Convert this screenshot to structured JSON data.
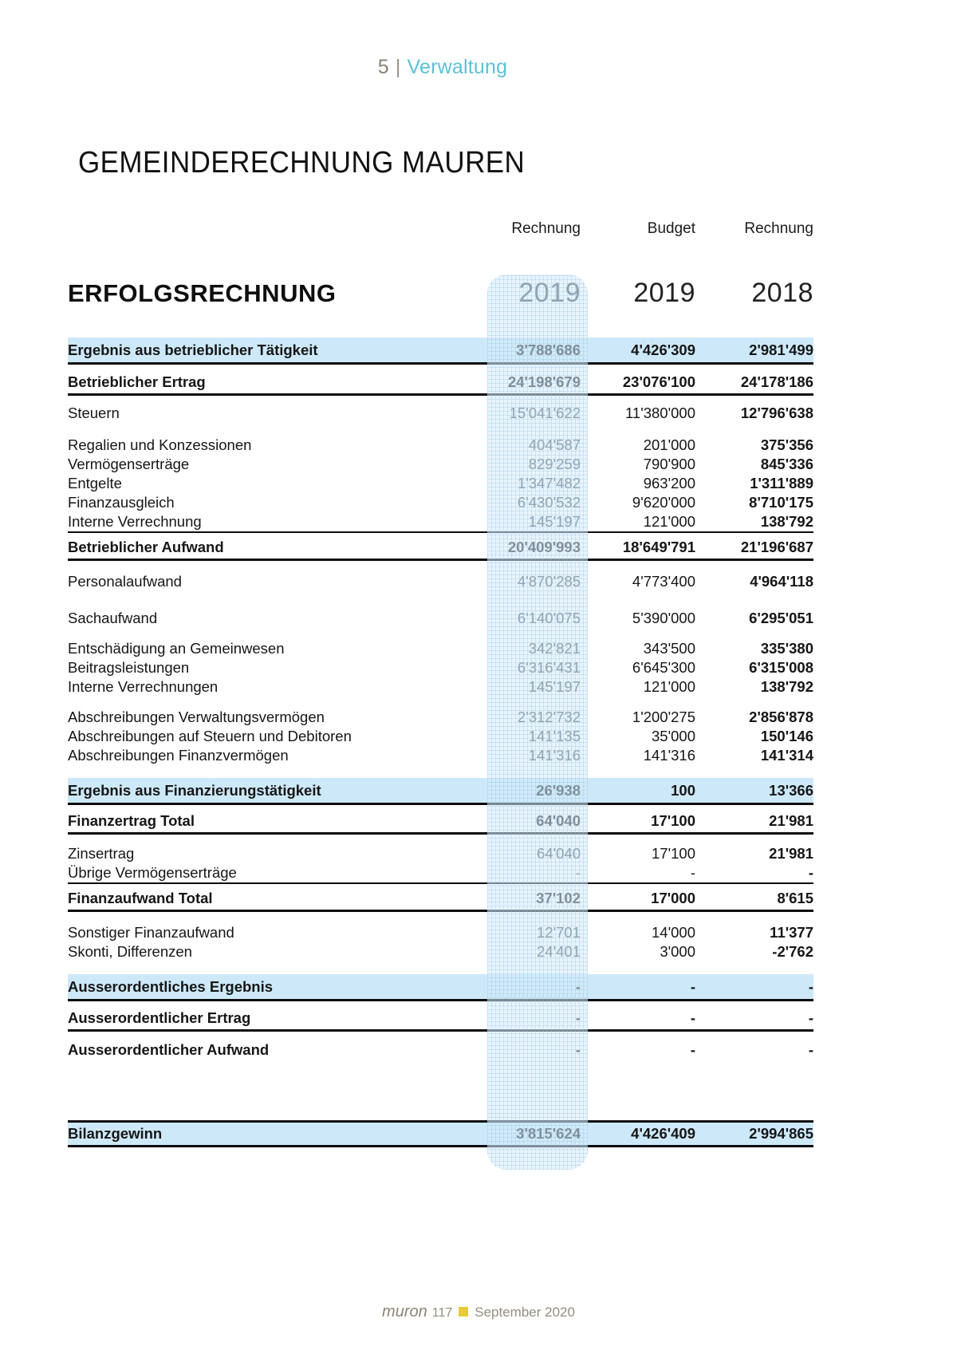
{
  "page_header": {
    "page_number": "5",
    "separator": "|",
    "section": "Verwaltung"
  },
  "title": "GEMEINDERECHNUNG MAUREN",
  "column_headers": [
    "Rechnung",
    "Budget",
    "Rechnung"
  ],
  "statement": {
    "heading": "ERFOLGSRECHNUNG",
    "years": [
      "2019",
      "2019",
      "2018"
    ]
  },
  "table": {
    "rows": [
      {
        "type": "result",
        "label": "Ergebnis aus betrieblicher Tätigkeit",
        "values": [
          "3'788'686",
          "4'426'309",
          "2'981'499"
        ]
      },
      {
        "type": "total",
        "label": "Betrieblicher Ertrag",
        "values": [
          "24'198'679",
          "23'076'100",
          "24'178'186"
        ]
      },
      {
        "type": "detail",
        "label": "Steuern",
        "values": [
          "15'041'622",
          "11'380'000",
          "12'796'638"
        ]
      },
      {
        "type": "detail",
        "label": "Regalien und Konzessionen",
        "values": [
          "404'587",
          "201'000",
          "375'356"
        ]
      },
      {
        "type": "detail",
        "label": "Vermögenserträge",
        "values": [
          "829'259",
          "790'900",
          "845'336"
        ]
      },
      {
        "type": "detail",
        "label": "Entgelte",
        "values": [
          "1'347'482",
          "963'200",
          "1'311'889"
        ]
      },
      {
        "type": "detail",
        "label": "Finanzausgleich",
        "values": [
          "6'430'532",
          "9'620'000",
          "8'710'175"
        ]
      },
      {
        "type": "detail",
        "label": "Interne Verrechnung",
        "values": [
          "145'197",
          "121'000",
          "138'792"
        ]
      },
      {
        "type": "total",
        "label": "Betrieblicher Aufwand",
        "values": [
          "20'409'993",
          "18'649'791",
          "21'196'687"
        ]
      },
      {
        "type": "detail",
        "label": "Personalaufwand",
        "values": [
          "4'870'285",
          "4'773'400",
          "4'964'118"
        ]
      },
      {
        "type": "detail",
        "label": "Sachaufwand",
        "values": [
          "6'140'075",
          "5'390'000",
          "6'295'051"
        ]
      },
      {
        "type": "detail",
        "label": "Entschädigung an Gemeinwesen",
        "values": [
          "342'821",
          "343'500",
          "335'380"
        ]
      },
      {
        "type": "detail",
        "label": "Beitragsleistungen",
        "values": [
          "6'316'431",
          "6'645'300",
          "6'315'008"
        ]
      },
      {
        "type": "detail",
        "label": "Interne Verrechnungen",
        "values": [
          "145'197",
          "121'000",
          "138'792"
        ]
      },
      {
        "type": "detail",
        "label": "Abschreibungen Verwaltungsvermögen",
        "values": [
          "2'312'732",
          "1'200'275",
          "2'856'878"
        ]
      },
      {
        "type": "detail",
        "label": "Abschreibungen auf Steuern und Debitoren",
        "values": [
          "141'135",
          "35'000",
          "150'146"
        ]
      },
      {
        "type": "detail",
        "label": "Abschreibungen Finanzvermögen",
        "values": [
          "141'316",
          "141'316",
          "141'314"
        ]
      },
      {
        "type": "result",
        "label": "Ergebnis aus Finanzierungstätigkeit",
        "values": [
          "26'938",
          "100",
          "13'366"
        ]
      },
      {
        "type": "total",
        "label": "Finanzertrag Total",
        "values": [
          "64'040",
          "17'100",
          "21'981"
        ]
      },
      {
        "type": "detail",
        "label": "Zinsertrag",
        "values": [
          "64'040",
          "17'100",
          "21'981"
        ]
      },
      {
        "type": "detail",
        "label": "Übrige Vermögenserträge",
        "values": [
          "-",
          "-",
          "-"
        ]
      },
      {
        "type": "total",
        "label": "Finanzaufwand Total",
        "values": [
          "37'102",
          "17'000",
          "8'615"
        ]
      },
      {
        "type": "detail",
        "label": "Sonstiger Finanzaufwand",
        "values": [
          "12'701",
          "14'000",
          "11'377"
        ]
      },
      {
        "type": "detail",
        "label": "Skonti, Differenzen",
        "values": [
          "24'401",
          "3'000",
          "-2'762"
        ]
      },
      {
        "type": "result",
        "label": "Ausserordentliches Ergebnis",
        "values": [
          "-",
          "-",
          "-"
        ]
      },
      {
        "type": "total",
        "label": "Ausserordentlicher Ertrag",
        "values": [
          "-",
          "-",
          "-"
        ]
      },
      {
        "type": "total",
        "label": "Ausserordentlicher Aufwand",
        "values": [
          "-",
          "-",
          "-"
        ]
      },
      {
        "type": "result",
        "label": "Bilanzgewinn",
        "values": [
          "3'815'624",
          "4'426'409",
          "2'994'865"
        ]
      }
    ]
  },
  "footer": {
    "magazine": "muron",
    "issue": "117",
    "date": "September 2020"
  },
  "colors": {
    "section_accent": "#5bc2d5",
    "header_gray": "#8b8276",
    "result_row_blue": "#cde9f9",
    "highlight_band_blue": "#d5ebf9",
    "footer_bullet_yellow": "#e8ca3d"
  }
}
